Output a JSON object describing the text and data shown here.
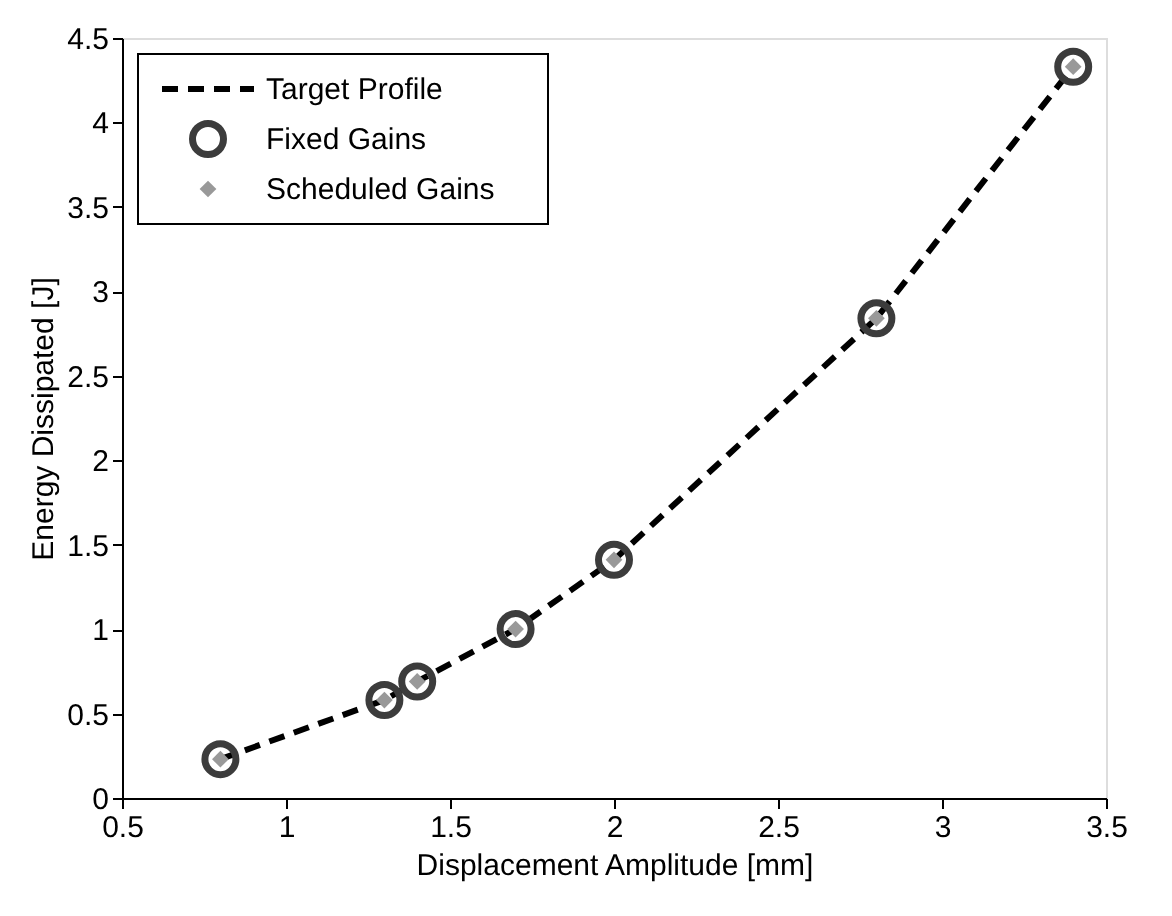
{
  "chart_data": {
    "type": "line",
    "xlabel": "Displacement Amplitude [mm]",
    "ylabel": "Energy Dissipated [J]",
    "x": [
      0.8,
      1.3,
      1.4,
      1.7,
      2.0,
      2.8,
      3.4
    ],
    "series": [
      {
        "name": "Target Profile",
        "line_style": "dashed",
        "marker": "none",
        "color": "#000000",
        "values": [
          0.23,
          0.58,
          0.69,
          1.0,
          1.41,
          2.84,
          4.33
        ]
      },
      {
        "name": "Fixed Gains",
        "type": "scatter",
        "marker": "circle",
        "color": "#3c3c3c",
        "values": [
          0.23,
          0.58,
          0.69,
          1.0,
          1.41,
          2.84,
          4.33
        ]
      },
      {
        "name": "Scheduled Gains",
        "type": "scatter",
        "marker": "diamond",
        "color": "#999999",
        "values": [
          0.23,
          0.58,
          0.69,
          1.0,
          1.41,
          2.84,
          4.33
        ]
      }
    ],
    "xlim": [
      0.5,
      3.5
    ],
    "xticks": [
      0.5,
      1,
      1.5,
      2,
      2.5,
      3,
      3.5
    ],
    "ylim": [
      0,
      4.5
    ],
    "yticks": [
      0,
      0.5,
      1,
      1.5,
      2,
      2.5,
      3,
      3.5,
      4,
      4.5
    ],
    "grid": false,
    "legend": "top left"
  }
}
